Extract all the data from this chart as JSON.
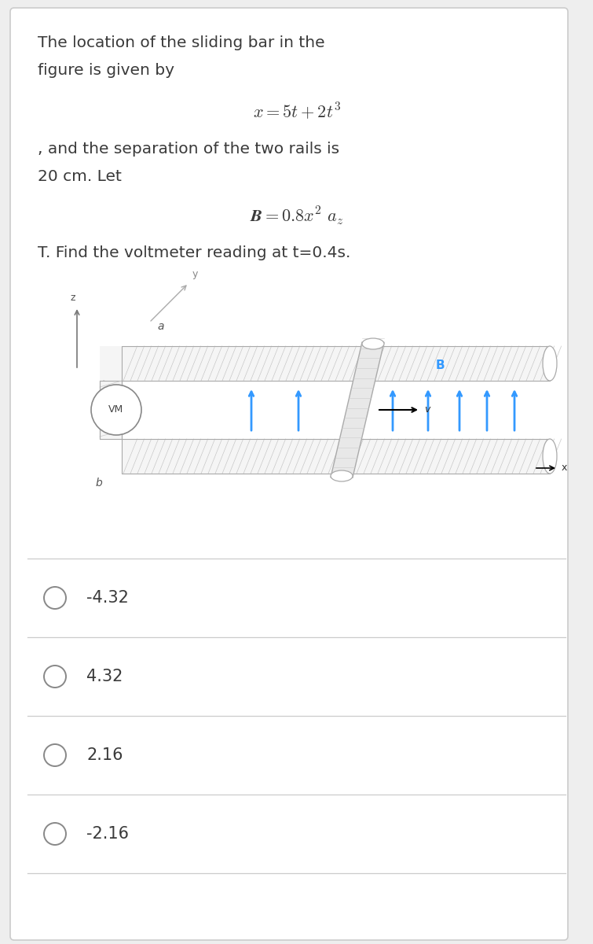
{
  "bg_color": "#eeeeee",
  "card_color": "#ffffff",
  "text_color": "#3a3a3a",
  "line1": "The location of the sliding bar in the",
  "line2": "figure is given by",
  "equation1": "$x = 5t + 2t^3$",
  "line3": ", and the separation of the two rails is",
  "line4": "20 cm. Let",
  "equation2": "$\\boldsymbol{B} = 0.8x^2\\ a_z$",
  "line5": "T. Find the voltmeter reading at t=0.4s.",
  "choices": [
    "-4.32",
    "4.32",
    "2.16",
    "-2.16"
  ],
  "arrow_color": "#3399ff",
  "separator_color": "#cccccc",
  "choice_text_color": "#3a3a3a",
  "rail_fill": "#f0f0f0",
  "rail_edge": "#aaaaaa",
  "tube_hatch_color": "#cccccc"
}
